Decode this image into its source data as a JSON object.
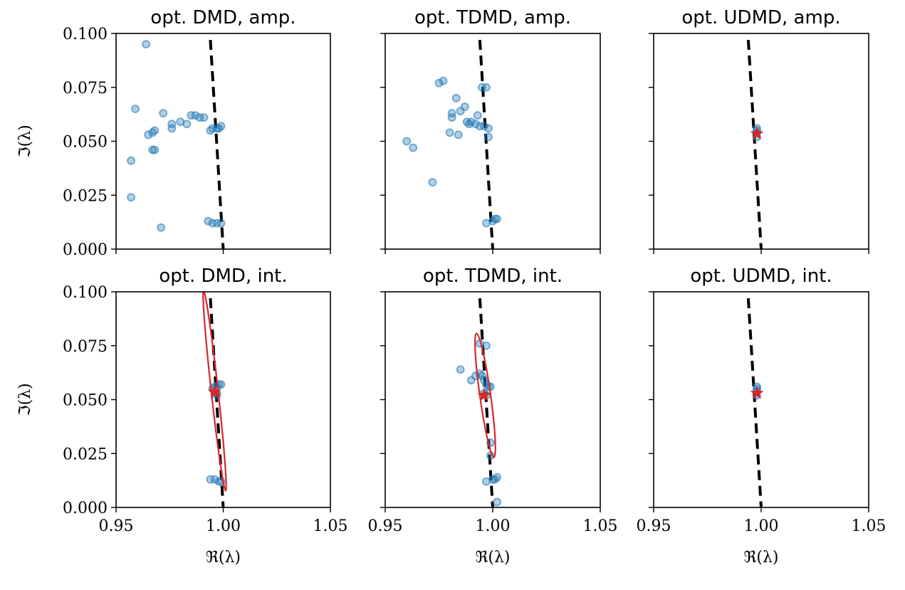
{
  "chart_data": [
    {
      "type": "scatter",
      "title": "opt. DMD, amp.",
      "xlabel": "",
      "ylabel": "ℑ(λ)",
      "xlim": [
        0.95,
        1.05
      ],
      "ylim": [
        0.0,
        0.1
      ],
      "xticks": [
        "0.95",
        "1.00",
        "1.05"
      ],
      "show_xticklabels": false,
      "yticks": [
        "0.000",
        "0.025",
        "0.050",
        "0.075",
        "0.100"
      ],
      "show_yticklabels": true,
      "points": [
        [
          0.964,
          0.095
        ],
        [
          0.959,
          0.065
        ],
        [
          0.957,
          0.041
        ],
        [
          0.957,
          0.024
        ],
        [
          0.971,
          0.01
        ],
        [
          0.972,
          0.063
        ],
        [
          0.965,
          0.053
        ],
        [
          0.967,
          0.054
        ],
        [
          0.968,
          0.055
        ],
        [
          0.967,
          0.046
        ],
        [
          0.968,
          0.046
        ],
        [
          0.976,
          0.058
        ],
        [
          0.976,
          0.056
        ],
        [
          0.98,
          0.059
        ],
        [
          0.983,
          0.058
        ],
        [
          0.985,
          0.062
        ],
        [
          0.987,
          0.062
        ],
        [
          0.989,
          0.061
        ],
        [
          0.991,
          0.061
        ],
        [
          0.994,
          0.055
        ],
        [
          0.995,
          0.056
        ],
        [
          0.997,
          0.056
        ],
        [
          0.998,
          0.056
        ],
        [
          0.999,
          0.057
        ],
        [
          0.993,
          0.013
        ],
        [
          0.995,
          0.012
        ],
        [
          0.997,
          0.012
        ],
        [
          0.999,
          0.012
        ]
      ],
      "reference_line": [
        [
          0.994,
          0.097
        ],
        [
          1.0,
          0.0
        ]
      ],
      "star": null,
      "ellipse": null
    },
    {
      "type": "scatter",
      "title": "opt. TDMD, amp.",
      "xlabel": "",
      "ylabel": "",
      "xlim": [
        0.95,
        1.05
      ],
      "ylim": [
        0.0,
        0.1
      ],
      "xticks": [
        "0.95",
        "1.00",
        "1.05"
      ],
      "show_xticklabels": false,
      "yticks": [
        "0.000",
        "0.025",
        "0.050",
        "0.075",
        "0.100"
      ],
      "show_yticklabels": false,
      "points": [
        [
          0.977,
          0.078
        ],
        [
          0.975,
          0.077
        ],
        [
          0.96,
          0.05
        ],
        [
          0.963,
          0.047
        ],
        [
          0.972,
          0.031
        ],
        [
          0.983,
          0.07
        ],
        [
          0.987,
          0.066
        ],
        [
          0.985,
          0.064
        ],
        [
          0.981,
          0.063
        ],
        [
          0.981,
          0.061
        ],
        [
          0.988,
          0.059
        ],
        [
          0.98,
          0.054
        ],
        [
          0.984,
          0.053
        ],
        [
          0.99,
          0.059
        ],
        [
          0.992,
          0.058
        ],
        [
          0.993,
          0.062
        ],
        [
          0.989,
          0.058
        ],
        [
          0.994,
          0.057
        ],
        [
          0.996,
          0.057
        ],
        [
          0.998,
          0.056
        ],
        [
          0.995,
          0.075
        ],
        [
          0.997,
          0.075
        ],
        [
          0.998,
          0.052
        ],
        [
          0.997,
          0.012
        ],
        [
          1.0,
          0.013
        ],
        [
          1.001,
          0.014
        ],
        [
          1.002,
          0.014
        ]
      ],
      "reference_line": [
        [
          0.994,
          0.097
        ],
        [
          1.0,
          0.0
        ]
      ],
      "star": null,
      "ellipse": null
    },
    {
      "type": "scatter",
      "title": "opt. UDMD, amp.",
      "xlabel": "",
      "ylabel": "",
      "xlim": [
        0.95,
        1.05
      ],
      "ylim": [
        0.0,
        0.1
      ],
      "xticks": [
        "0.95",
        "1.00",
        "1.05"
      ],
      "show_xticklabels": false,
      "yticks": [
        "0.000",
        "0.025",
        "0.050",
        "0.075",
        "0.100"
      ],
      "show_yticklabels": false,
      "points": [
        [
          0.998,
          0.056
        ],
        [
          0.998,
          0.055
        ],
        [
          0.998,
          0.054
        ],
        [
          0.998,
          0.052
        ]
      ],
      "reference_line": [
        [
          0.994,
          0.097
        ],
        [
          1.0,
          0.0
        ]
      ],
      "star": [
        0.998,
        0.0535
      ],
      "ellipse": null
    },
    {
      "type": "scatter",
      "title": "opt. DMD, int.",
      "xlabel": "ℜ(λ)",
      "ylabel": "ℑ(λ)",
      "xlim": [
        0.95,
        1.05
      ],
      "ylim": [
        0.0,
        0.1
      ],
      "xticks": [
        "0.95",
        "1.00",
        "1.05"
      ],
      "show_xticklabels": true,
      "yticks": [
        "0.000",
        "0.025",
        "0.050",
        "0.075",
        "0.100"
      ],
      "show_yticklabels": true,
      "points": [
        [
          0.996,
          0.056
        ],
        [
          0.997,
          0.056
        ],
        [
          0.998,
          0.057
        ],
        [
          0.999,
          0.057
        ],
        [
          0.995,
          0.055
        ],
        [
          0.997,
          0.053
        ],
        [
          0.997,
          0.052
        ],
        [
          0.994,
          0.013
        ],
        [
          0.996,
          0.013
        ],
        [
          0.998,
          0.012
        ],
        [
          0.999,
          0.012
        ]
      ],
      "reference_line": [
        [
          0.994,
          0.097
        ],
        [
          1.0,
          0.0
        ]
      ],
      "star": [
        0.996,
        0.0535
      ],
      "ellipse": {
        "cx": 0.996,
        "cy": 0.054,
        "rx": 0.0016,
        "ry": 0.0465,
        "tilt_deg": -6.3
      }
    },
    {
      "type": "scatter",
      "title": "opt. TDMD, int.",
      "xlabel": "ℜ(λ)",
      "ylabel": "",
      "xlim": [
        0.95,
        1.05
      ],
      "ylim": [
        0.0,
        0.1
      ],
      "xticks": [
        "0.95",
        "1.00",
        "1.05"
      ],
      "show_xticklabels": true,
      "yticks": [
        "0.000",
        "0.025",
        "0.050",
        "0.075",
        "0.100"
      ],
      "show_yticklabels": false,
      "points": [
        [
          0.985,
          0.064
        ],
        [
          0.99,
          0.059
        ],
        [
          0.992,
          0.061
        ],
        [
          0.994,
          0.062
        ],
        [
          0.995,
          0.061
        ],
        [
          0.996,
          0.059
        ],
        [
          0.997,
          0.057
        ],
        [
          0.998,
          0.056
        ],
        [
          0.999,
          0.056
        ],
        [
          0.994,
          0.076
        ],
        [
          0.997,
          0.075
        ],
        [
          0.996,
          0.053
        ],
        [
          0.997,
          0.052
        ],
        [
          0.999,
          0.03
        ],
        [
          0.999,
          0.024
        ],
        [
          0.997,
          0.012
        ],
        [
          1.0,
          0.013
        ],
        [
          1.001,
          0.013
        ],
        [
          1.002,
          0.014
        ],
        [
          1.002,
          0.0025
        ]
      ],
      "reference_line": [
        [
          0.994,
          0.097
        ],
        [
          1.0,
          0.0
        ]
      ],
      "star": [
        0.996,
        0.052
      ],
      "ellipse": {
        "cx": 0.9965,
        "cy": 0.052,
        "rx": 0.0025,
        "ry": 0.029,
        "tilt_deg": -8.0
      }
    },
    {
      "type": "scatter",
      "title": "opt. UDMD, int.",
      "xlabel": "ℜ(λ)",
      "ylabel": "",
      "xlim": [
        0.95,
        1.05
      ],
      "ylim": [
        0.0,
        0.1
      ],
      "xticks": [
        "0.95",
        "1.00",
        "1.05"
      ],
      "show_xticklabels": true,
      "yticks": [
        "0.000",
        "0.025",
        "0.050",
        "0.075",
        "0.100"
      ],
      "show_yticklabels": false,
      "points": [
        [
          0.998,
          0.056
        ],
        [
          0.998,
          0.055
        ],
        [
          0.998,
          0.054
        ],
        [
          0.998,
          0.052
        ]
      ],
      "reference_line": [
        [
          0.994,
          0.097
        ],
        [
          1.0,
          0.0
        ]
      ],
      "star": [
        0.998,
        0.053
      ],
      "ellipse": null
    }
  ]
}
